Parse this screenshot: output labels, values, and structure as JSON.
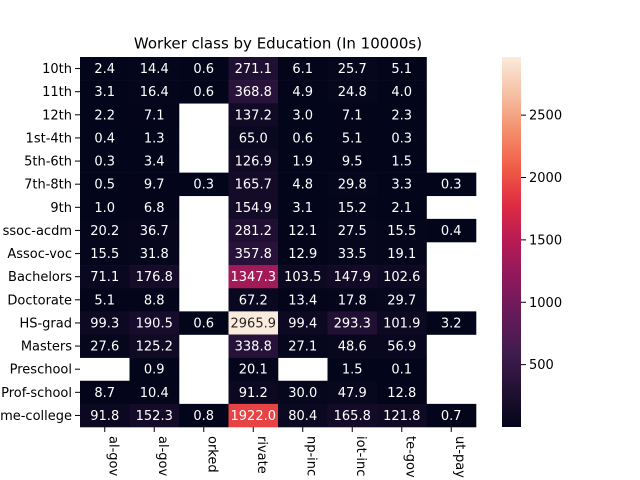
{
  "chart_data": {
    "type": "heatmap",
    "title": "Worker class by Education (In 10000s)",
    "xlabel": "",
    "ylabel": "",
    "x_tick_labels": [
      "al-gov",
      "al-gov",
      "orked",
      "rivate",
      "np-inc",
      "iot-inc",
      "te-gov",
      "ut-pay"
    ],
    "y_tick_labels": [
      "10th",
      "11th",
      "12th",
      "1st-4th",
      "5th-6th",
      "7th-8th",
      "9th",
      "ssoc-acdm",
      "Assoc-voc",
      "Bachelors",
      "Doctorate",
      "HS-grad",
      "Masters",
      "Preschool",
      "Prof-school",
      "me-college"
    ],
    "values": [
      [
        2.4,
        14.4,
        0.6,
        271.1,
        6.1,
        25.7,
        5.1,
        null
      ],
      [
        3.1,
        16.4,
        0.6,
        368.8,
        4.9,
        24.8,
        4.0,
        null
      ],
      [
        2.2,
        7.1,
        null,
        137.2,
        3.0,
        7.1,
        2.3,
        null
      ],
      [
        0.4,
        1.3,
        null,
        65.0,
        0.6,
        5.1,
        0.3,
        null
      ],
      [
        0.3,
        3.4,
        null,
        126.9,
        1.9,
        9.5,
        1.5,
        null
      ],
      [
        0.5,
        9.7,
        0.3,
        165.7,
        4.8,
        29.8,
        3.3,
        0.3
      ],
      [
        1.0,
        6.8,
        null,
        154.9,
        3.1,
        15.2,
        2.1,
        null
      ],
      [
        20.2,
        36.7,
        null,
        281.2,
        12.1,
        27.5,
        15.5,
        0.4
      ],
      [
        15.5,
        31.8,
        null,
        357.8,
        12.9,
        33.5,
        19.1,
        null
      ],
      [
        71.1,
        176.8,
        null,
        1347.3,
        103.5,
        147.9,
        102.6,
        null
      ],
      [
        5.1,
        8.8,
        null,
        67.2,
        13.4,
        17.8,
        29.7,
        null
      ],
      [
        99.3,
        190.5,
        0.6,
        2965.9,
        99.4,
        293.3,
        101.9,
        3.2
      ],
      [
        27.6,
        125.2,
        null,
        338.8,
        27.1,
        48.6,
        56.9,
        null
      ],
      [
        null,
        0.9,
        null,
        20.1,
        null,
        1.5,
        0.1,
        null
      ],
      [
        8.7,
        10.4,
        null,
        91.2,
        30.0,
        47.9,
        12.8,
        null
      ],
      [
        91.8,
        152.3,
        0.8,
        1922.0,
        80.4,
        165.8,
        121.8,
        0.7
      ]
    ],
    "colormap": "rocket",
    "colorbar": {
      "min": 0.1,
      "max": 2965.9,
      "ticks": [
        500,
        1000,
        1500,
        2000,
        2500
      ]
    },
    "grid": false,
    "legend": "none"
  }
}
